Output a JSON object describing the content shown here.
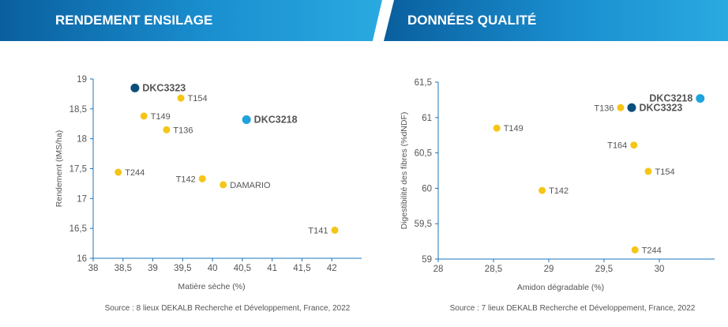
{
  "headers": {
    "left": "RENDEMENT ENSILAGE",
    "right": "DONNÉES QUALITÉ"
  },
  "colors": {
    "accent_yellow": "#f5c518",
    "dark_blue": "#0b4f7c",
    "light_blue": "#1ea3dc",
    "axis": "#1a75bc"
  },
  "chart_data": [
    {
      "type": "scatter",
      "xlabel": "Matière sèche (%)",
      "ylabel": "Rendement (tMS/ha)",
      "xlim": [
        38,
        42.5
      ],
      "ylim": [
        16,
        19
      ],
      "xticks": [
        "38",
        "38,5",
        "39",
        "39,5",
        "40",
        "40,5",
        "41",
        "41,5",
        "42"
      ],
      "yticks": [
        "16",
        "16,5",
        "17",
        "17,5",
        "18",
        "18,5",
        "19"
      ],
      "points": [
        {
          "label": "DKC3323",
          "x": 38.7,
          "y": 18.85,
          "color": "#0b4f7c",
          "bold": true,
          "side": "right"
        },
        {
          "label": "DKC3218",
          "x": 40.57,
          "y": 18.32,
          "color": "#1ea3dc",
          "bold": true,
          "side": "right"
        },
        {
          "label": "T154",
          "x": 39.47,
          "y": 18.68,
          "color": "#f5c518",
          "side": "right"
        },
        {
          "label": "T149",
          "x": 38.85,
          "y": 18.38,
          "color": "#f5c518",
          "side": "right"
        },
        {
          "label": "T136",
          "x": 39.23,
          "y": 18.15,
          "color": "#f5c518",
          "side": "right"
        },
        {
          "label": "T244",
          "x": 38.42,
          "y": 17.44,
          "color": "#f5c518",
          "side": "right"
        },
        {
          "label": "T142",
          "x": 39.83,
          "y": 17.33,
          "color": "#f5c518",
          "side": "left"
        },
        {
          "label": "DAMARIO",
          "x": 40.18,
          "y": 17.23,
          "color": "#f5c518",
          "side": "right"
        },
        {
          "label": "T141",
          "x": 42.05,
          "y": 16.47,
          "color": "#f5c518",
          "side": "left"
        }
      ],
      "source": "Source : 8 lieux DEKALB Recherche et Développement, France, 2022"
    },
    {
      "type": "scatter",
      "xlabel": "Amidon dégradable (%)",
      "ylabel": "Digestibilité des fibres (%dNDF)",
      "xlim": [
        28,
        30.5
      ],
      "ylim": [
        59,
        61.5
      ],
      "xticks": [
        "28",
        "28,5",
        "29",
        "29,5",
        "30"
      ],
      "yticks": [
        "59",
        "59,5",
        "60",
        "60,5",
        "61",
        "61,5"
      ],
      "points": [
        {
          "label": "DKC3218",
          "x": 30.37,
          "y": 61.27,
          "color": "#1ea3dc",
          "bold": true,
          "side": "left"
        },
        {
          "label": "DKC3323",
          "x": 29.75,
          "y": 61.14,
          "color": "#0b4f7c",
          "bold": true,
          "side": "right"
        },
        {
          "label": "T136",
          "x": 29.65,
          "y": 61.14,
          "color": "#f5c518",
          "side": "left"
        },
        {
          "label": "T149",
          "x": 28.53,
          "y": 60.85,
          "color": "#f5c518",
          "side": "right"
        },
        {
          "label": "T164",
          "x": 29.77,
          "y": 60.61,
          "color": "#f5c518",
          "side": "left"
        },
        {
          "label": "T154",
          "x": 29.9,
          "y": 60.24,
          "color": "#f5c518",
          "side": "right"
        },
        {
          "label": "T142",
          "x": 28.94,
          "y": 59.97,
          "color": "#f5c518",
          "side": "right"
        },
        {
          "label": "T244",
          "x": 29.78,
          "y": 59.13,
          "color": "#f5c518",
          "side": "right"
        }
      ],
      "source": "Source : 7 lieux DEKALB Recherche et Développement, France, 2022"
    }
  ]
}
